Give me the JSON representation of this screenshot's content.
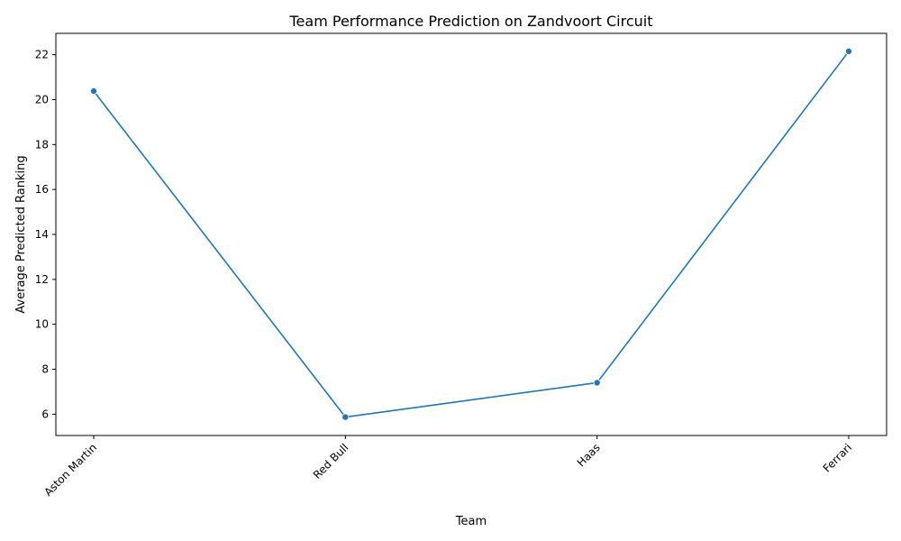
{
  "chart_data": {
    "type": "line",
    "title": "Team Performance Prediction on Zandvoort Circuit",
    "xlabel": "Team",
    "ylabel": "Average Predicted Ranking",
    "categories": [
      "Aston Martin",
      "Red Bull",
      "Haas",
      "Ferrari"
    ],
    "series": [
      {
        "values": [
          20.38,
          5.87,
          7.4,
          22.15
        ],
        "color": "#1f77b4",
        "marker": "circle"
      }
    ],
    "ylim": [
      5.05,
      22.95
    ],
    "yticks": [
      6,
      8,
      10,
      12,
      14,
      16,
      18,
      20,
      22
    ],
    "xtick_rotation_deg": 45,
    "grid": false,
    "legend": "none"
  }
}
